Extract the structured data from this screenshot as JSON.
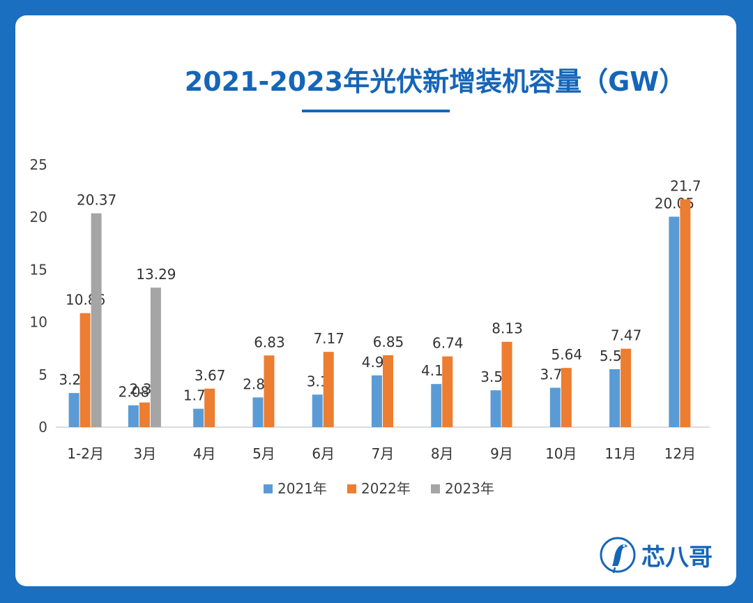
{
  "title": "2021-2023年光伏新增装机容量（GW）",
  "brand": {
    "logo_text": "芯八哥"
  },
  "colors": {
    "background": "#1a6fc0",
    "title": "#1565b8"
  },
  "chart_data": {
    "type": "bar",
    "title": "2021-2023年光伏新增装机容量（GW）",
    "categories": [
      "1-2月",
      "3月",
      "4月",
      "5月",
      "6月",
      "7月",
      "8月",
      "9月",
      "10月",
      "11月",
      "12月"
    ],
    "ylim": [
      0,
      25
    ],
    "yticks": [
      0,
      5,
      10,
      15,
      20,
      25
    ],
    "legend_position": "bottom",
    "grid": false,
    "series": [
      {
        "name": "2021年",
        "color": "#5b9bd5",
        "values": [
          3.25,
          2.08,
          1.75,
          2.83,
          3.1,
          4.93,
          4.11,
          3.51,
          3.75,
          5.52,
          20.05
        ]
      },
      {
        "name": "2022年",
        "color": "#ed7d31",
        "values": [
          10.86,
          2.35,
          3.67,
          6.83,
          7.17,
          6.85,
          6.74,
          8.13,
          5.64,
          7.47,
          21.7
        ]
      },
      {
        "name": "2023年",
        "color": "#a5a5a5",
        "values": [
          20.37,
          13.29,
          null,
          null,
          null,
          null,
          null,
          null,
          null,
          null,
          null
        ]
      }
    ]
  }
}
